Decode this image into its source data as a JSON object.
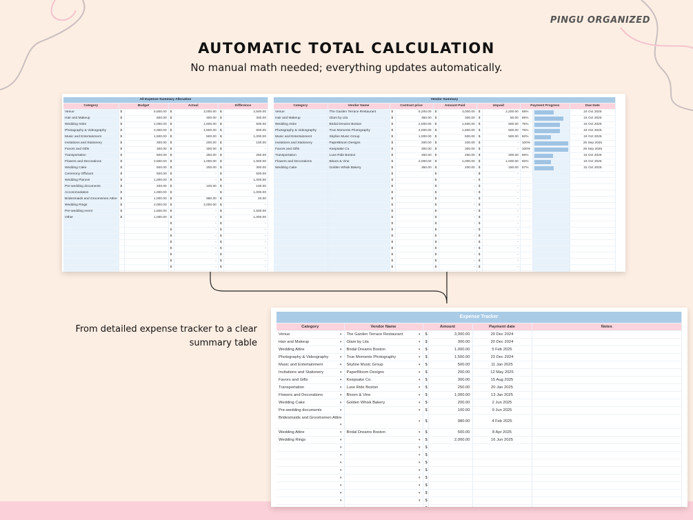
{
  "brand": "PINGU ORGANIZED",
  "title": "AUTOMATIC TOTAL CALCULATION",
  "subtitle": "No manual math needed; everything updates automatically.",
  "caption_line1": "From detailed expense tracker to a clear",
  "caption_line2": "summary table",
  "currency": "$",
  "dash": "-",
  "summary": {
    "title": "All Expense Summary Allocation",
    "headers": [
      "Category",
      "Budget",
      "Actual",
      "Difference"
    ],
    "rows": [
      [
        "Venue",
        "5,500.00",
        "3,000.00",
        "2,500.00"
      ],
      [
        "Hair and Makeup",
        "600.00",
        "300.00",
        "300.00"
      ],
      [
        "Wedding Attire",
        "2,000.00",
        "1,500.00",
        "500.00"
      ],
      [
        "Photography & Videography",
        "2,000.00",
        "1,500.00",
        "500.00"
      ],
      [
        "Music and Entertainment",
        "1,500.00",
        "500.00",
        "1,000.00"
      ],
      [
        "Invitations and Stationery",
        "300.00",
        "200.00",
        "100.00"
      ],
      [
        "Favors and Gifts",
        "300.00",
        "300.00",
        "-"
      ],
      [
        "Transportation",
        "500.00",
        "250.00",
        "250.00"
      ],
      [
        "Flowers and Decorations",
        "2,500.00",
        "1,000.00",
        "1,500.00"
      ],
      [
        "Wedding Cake",
        "500.00",
        "200.00",
        "300.00"
      ],
      [
        "Ceremony Officiant",
        "500.00",
        "-",
        "500.00"
      ],
      [
        "Wedding Planner",
        "1,000.00",
        "-",
        "1,000.00"
      ],
      [
        "Pre-wedding documents",
        "200.00",
        "100.00",
        "100.00"
      ],
      [
        "Accommodation",
        "1,000.00",
        "-",
        "1,000.00"
      ],
      [
        "Bridesmaids and Groomsmen Attire",
        "1,000.00",
        "980.00",
        "20.00"
      ],
      [
        "Wedding Rings",
        "2,000.00",
        "2,000.00",
        "-"
      ],
      [
        "Pre-wedding event",
        "1,500.00",
        "-",
        "1,500.00"
      ],
      [
        "Other",
        "1,000.00",
        "-",
        "1,000.00"
      ]
    ]
  },
  "vendor": {
    "title": "Vendor Summary",
    "headers": [
      "Category",
      "Vendor Name",
      "Contract price",
      "Amount Paid",
      "Unpaid",
      "Payment Progress",
      "Due Date"
    ],
    "rows": [
      [
        "Venue",
        "The Garden Terrace Restaurant",
        "5,200.00",
        "3,000.00",
        "2,200.00",
        "58%",
        58,
        "24 Oct 2025"
      ],
      [
        "Hair and Makeup",
        "Glam by Lila",
        "350.00",
        "300.00",
        "50.00",
        "86%",
        86,
        "24 Oct 2025"
      ],
      [
        "Wedding Attire",
        "Bridal Dreams Boston",
        "2,000.00",
        "1,500.00",
        "500.00",
        "75%",
        75,
        "24 Oct 2025"
      ],
      [
        "Photography & Videography",
        "True Moments Photography",
        "2,000.00",
        "1,500.00",
        "500.00",
        "75%",
        75,
        "24 Oct 2025"
      ],
      [
        "Music and Entertainment",
        "Skyline Music Group",
        "1,000.00",
        "500.00",
        "500.00",
        "50%",
        50,
        "24 Oct 2025"
      ],
      [
        "Invitations and Stationery",
        "PaperBloom Designs",
        "200.00",
        "200.00",
        "-",
        "100%",
        100,
        "26 Sep 2025"
      ],
      [
        "Favors and Gifts",
        "Keepsake Co.",
        "300.00",
        "300.00",
        "-",
        "100%",
        100,
        "26 Sep 2025"
      ],
      [
        "Transportation",
        "Luxe Ride Boston",
        "450.00",
        "250.00",
        "200.00",
        "56%",
        56,
        "24 Oct 2025"
      ],
      [
        "Flowers and Decorations",
        "Bloom & Vine",
        "2,000.00",
        "1,000.00",
        "1,000.00",
        "50%",
        50,
        "24 Oct 2025"
      ],
      [
        "Wedding Cake",
        "Golden Whisk Bakery",
        "350.00",
        "200.00",
        "150.00",
        "57%",
        57,
        "31 Oct 2025"
      ]
    ]
  },
  "tracker": {
    "title": "Expense Tracker",
    "headers": [
      "Category",
      "Vendor Name",
      "Amount",
      "Payment date",
      "Notes"
    ],
    "rows": [
      [
        "Venue",
        "The Garden Terrace Restaurant",
        "3,000.00",
        "20 Dec 2024"
      ],
      [
        "Hair and Makeup",
        "Glam by Lila",
        "300.00",
        "20 Dec 2024"
      ],
      [
        "Wedding Attire",
        "Bridal Dreams Boston",
        "1,000.00",
        "5 Feb 2025"
      ],
      [
        "Photography & Videography",
        "True Moments Photography",
        "1,500.00",
        "23 Dec 2024"
      ],
      [
        "Music and Entertainment",
        "Skyline Music Group",
        "500.00",
        "11 Jan 2025"
      ],
      [
        "Invitations and Stationery",
        "PaperBloom Designs",
        "200.00",
        "12 May 2025"
      ],
      [
        "Favors and Gifts",
        "Keepsake Co.",
        "300.00",
        "15 Aug 2025"
      ],
      [
        "Transportation",
        "Luxe Ride Boston",
        "250.00",
        "20 Jan 2025"
      ],
      [
        "Flowers and Decorations",
        "Bloom & Vine",
        "1,000.00",
        "13 Jan 2025"
      ],
      [
        "Wedding Cake",
        "Golden Whisk Bakery",
        "200.00",
        "2 Jun 2025"
      ],
      [
        "Pre-wedding documents",
        "",
        "100.00",
        "9 Jun 2025"
      ],
      [
        "Bridesmaids and Groomsmen Attire",
        "",
        "980.00",
        "4 Feb 2025"
      ],
      [
        "Wedding Attire",
        "Bridal Dreams Boston",
        "500.00",
        "8 Apr 2025"
      ],
      [
        "Wedding Rings",
        "",
        "2,000.00",
        "16 Jun 2025"
      ]
    ]
  }
}
